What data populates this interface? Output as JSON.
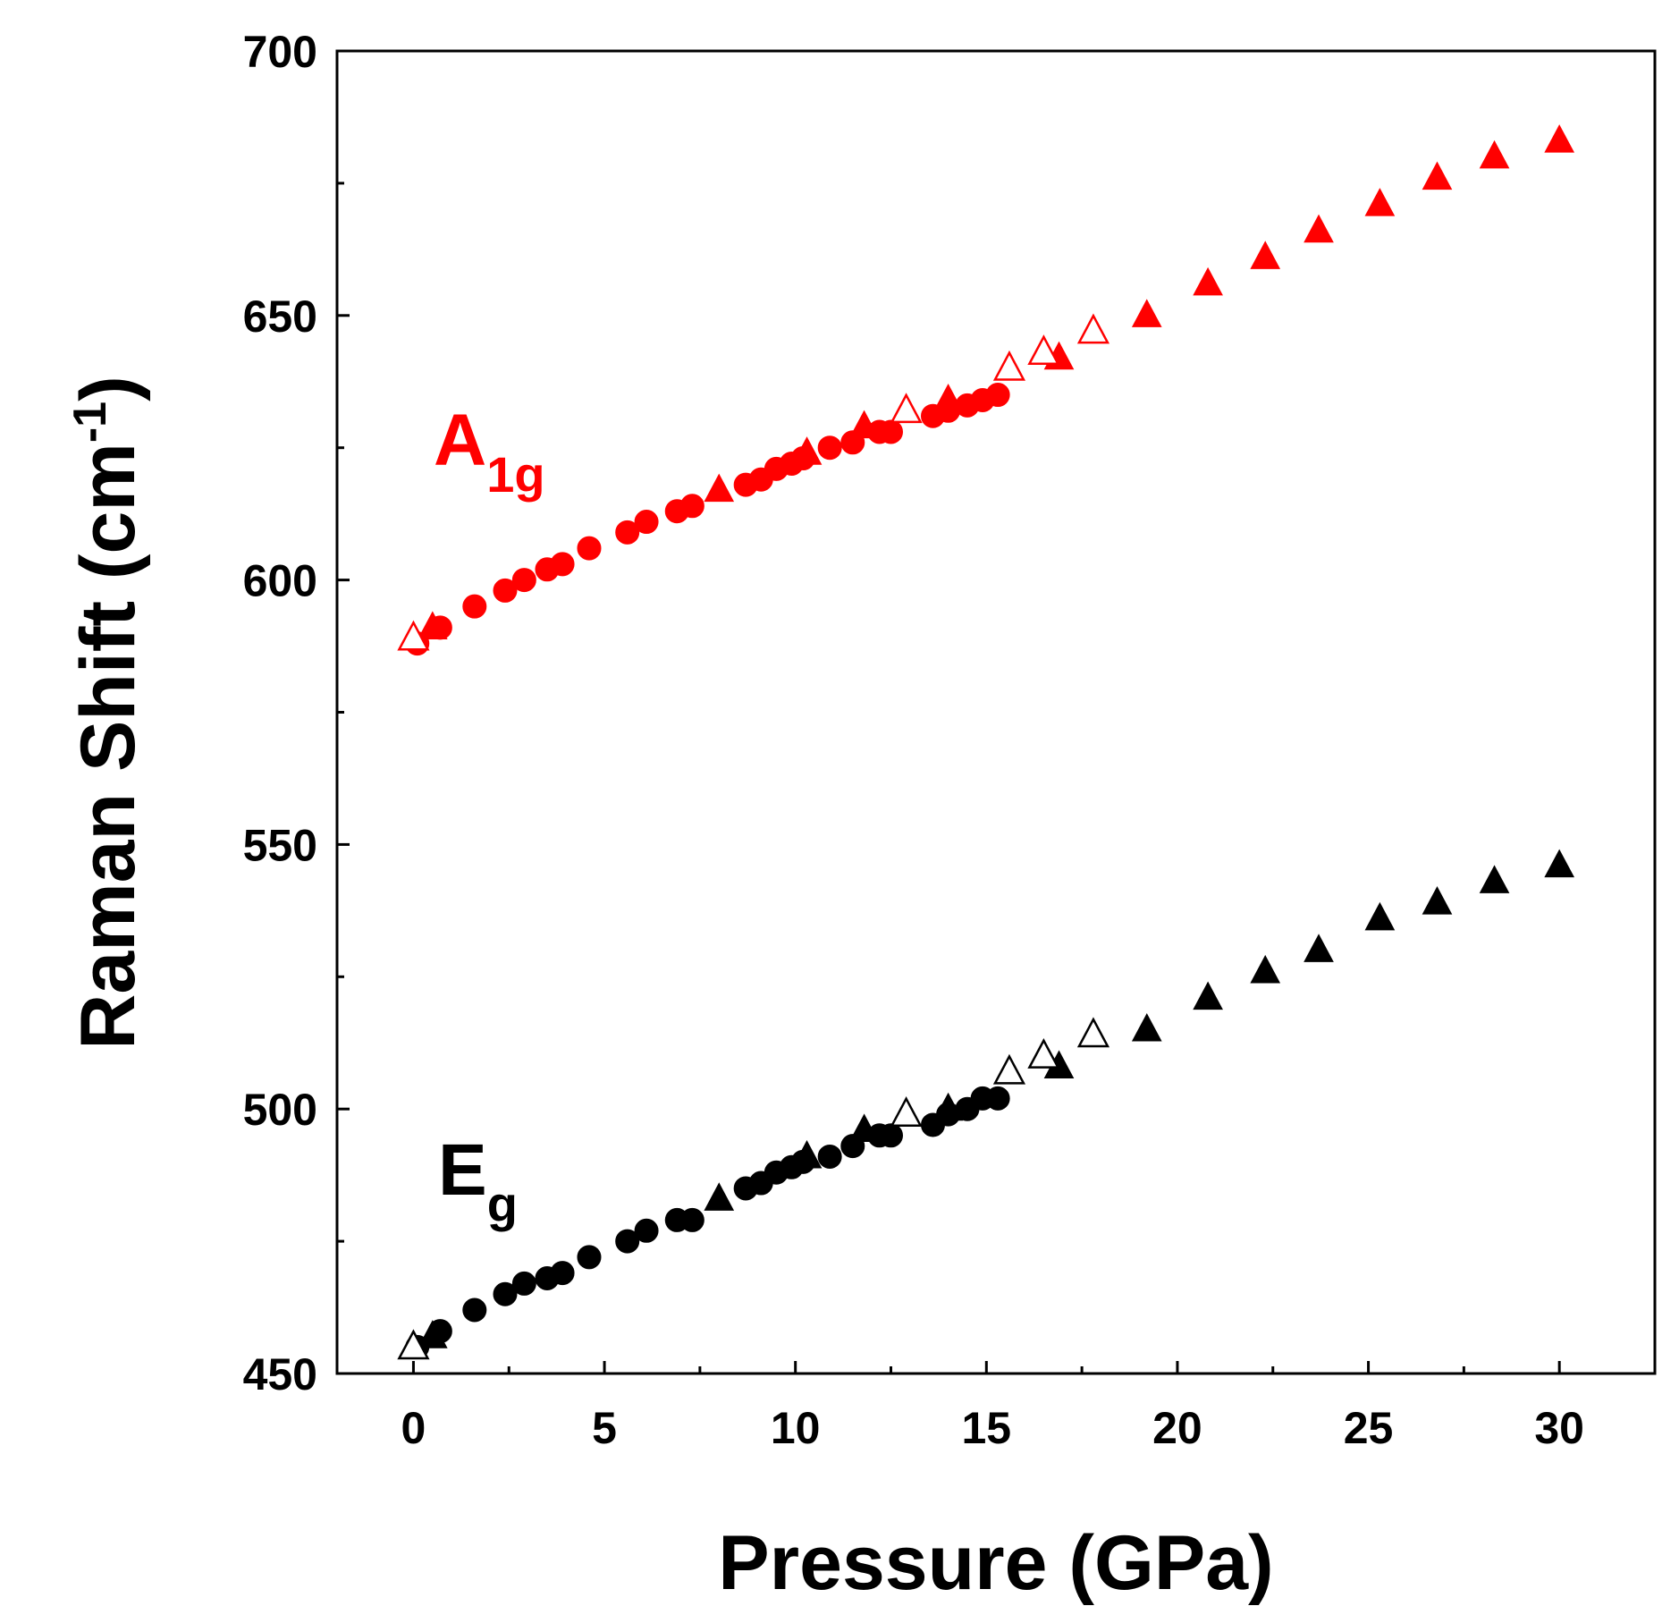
{
  "chart_data": {
    "type": "scatter",
    "title": "",
    "xlabel": "Pressure (GPa)",
    "ylabel": "Raman Shift (cm",
    "ylabel_superscript": "-1",
    "ylabel_close": ")",
    "xlim": [
      -2,
      32.5
    ],
    "ylim": [
      450,
      700
    ],
    "xticks": [
      0,
      5,
      10,
      15,
      20,
      25,
      30
    ],
    "xtick_labels": [
      "0",
      "5",
      "10",
      "15",
      "20",
      "25",
      "30"
    ],
    "yticks": [
      450,
      500,
      550,
      600,
      650,
      700
    ],
    "ytick_labels": [
      "450",
      "500",
      "550",
      "600",
      "650",
      "700"
    ],
    "grid": false,
    "colors": {
      "A1g": "#ff0000",
      "Eg": "#000000"
    },
    "annotations": [
      {
        "series": "A1g",
        "main": "A",
        "sub": "1g",
        "color": "#ff0000"
      },
      {
        "series": "Eg",
        "main": "E",
        "sub": "g",
        "color": "#000000"
      }
    ],
    "series": [
      {
        "name": "A1g circles (filled)",
        "mode": "A1g",
        "marker": "circle",
        "filled": true,
        "points": [
          [
            0.1,
            588
          ],
          [
            0.7,
            591
          ],
          [
            1.6,
            595
          ],
          [
            2.4,
            598
          ],
          [
            2.9,
            600
          ],
          [
            3.5,
            602
          ],
          [
            3.9,
            603
          ],
          [
            4.6,
            606
          ],
          [
            5.6,
            609
          ],
          [
            6.1,
            611
          ],
          [
            6.9,
            613
          ],
          [
            7.3,
            614
          ],
          [
            8.7,
            618
          ],
          [
            9.1,
            619
          ],
          [
            9.5,
            621
          ],
          [
            9.9,
            622
          ],
          [
            10.2,
            623
          ],
          [
            10.9,
            625
          ],
          [
            11.5,
            626
          ],
          [
            12.2,
            628
          ],
          [
            12.5,
            628
          ],
          [
            13.6,
            631
          ],
          [
            14.0,
            632
          ],
          [
            14.5,
            633
          ],
          [
            14.9,
            634
          ],
          [
            15.3,
            635
          ]
        ]
      },
      {
        "name": "A1g triangles (filled)",
        "mode": "A1g",
        "marker": "triangle",
        "filled": true,
        "points": [
          [
            0.5,
            591
          ],
          [
            8.0,
            617
          ],
          [
            10.3,
            624
          ],
          [
            11.8,
            629
          ],
          [
            14.0,
            634
          ],
          [
            16.9,
            642
          ],
          [
            19.2,
            650
          ],
          [
            20.8,
            656
          ],
          [
            22.3,
            661
          ],
          [
            23.7,
            666
          ],
          [
            25.3,
            671
          ],
          [
            26.8,
            676
          ],
          [
            28.3,
            680
          ],
          [
            30.0,
            683
          ]
        ]
      },
      {
        "name": "A1g triangles (open)",
        "mode": "A1g",
        "marker": "triangle",
        "filled": false,
        "points": [
          [
            0.0,
            589
          ],
          [
            12.9,
            632
          ],
          [
            15.6,
            640
          ],
          [
            16.5,
            643
          ],
          [
            17.8,
            647
          ]
        ]
      },
      {
        "name": "Eg circles (filled)",
        "mode": "Eg",
        "marker": "circle",
        "filled": true,
        "points": [
          [
            0.1,
            455
          ],
          [
            0.7,
            458
          ],
          [
            1.6,
            462
          ],
          [
            2.4,
            465
          ],
          [
            2.9,
            467
          ],
          [
            3.5,
            468
          ],
          [
            3.9,
            469
          ],
          [
            4.6,
            472
          ],
          [
            5.6,
            475
          ],
          [
            6.1,
            477
          ],
          [
            6.9,
            479
          ],
          [
            7.3,
            479
          ],
          [
            8.7,
            485
          ],
          [
            9.1,
            486
          ],
          [
            9.5,
            488
          ],
          [
            9.9,
            489
          ],
          [
            10.2,
            490
          ],
          [
            10.9,
            491
          ],
          [
            11.5,
            493
          ],
          [
            12.2,
            495
          ],
          [
            12.5,
            495
          ],
          [
            13.6,
            497
          ],
          [
            14.0,
            499
          ],
          [
            14.5,
            500
          ],
          [
            14.9,
            502
          ],
          [
            15.3,
            502
          ]
        ]
      },
      {
        "name": "Eg triangles (filled)",
        "mode": "Eg",
        "marker": "triangle",
        "filled": true,
        "points": [
          [
            0.5,
            457
          ],
          [
            8.0,
            483
          ],
          [
            10.3,
            491
          ],
          [
            11.8,
            496
          ],
          [
            14.0,
            500
          ],
          [
            16.9,
            508
          ],
          [
            19.2,
            515
          ],
          [
            20.8,
            521
          ],
          [
            22.3,
            526
          ],
          [
            23.7,
            530
          ],
          [
            25.3,
            536
          ],
          [
            26.8,
            539
          ],
          [
            28.3,
            543
          ],
          [
            30.0,
            546
          ]
        ]
      },
      {
        "name": "Eg triangles (open)",
        "mode": "Eg",
        "marker": "triangle",
        "filled": false,
        "points": [
          [
            0.0,
            455
          ],
          [
            12.9,
            499
          ],
          [
            15.6,
            507
          ],
          [
            16.5,
            510
          ],
          [
            17.8,
            514
          ]
        ]
      }
    ]
  }
}
